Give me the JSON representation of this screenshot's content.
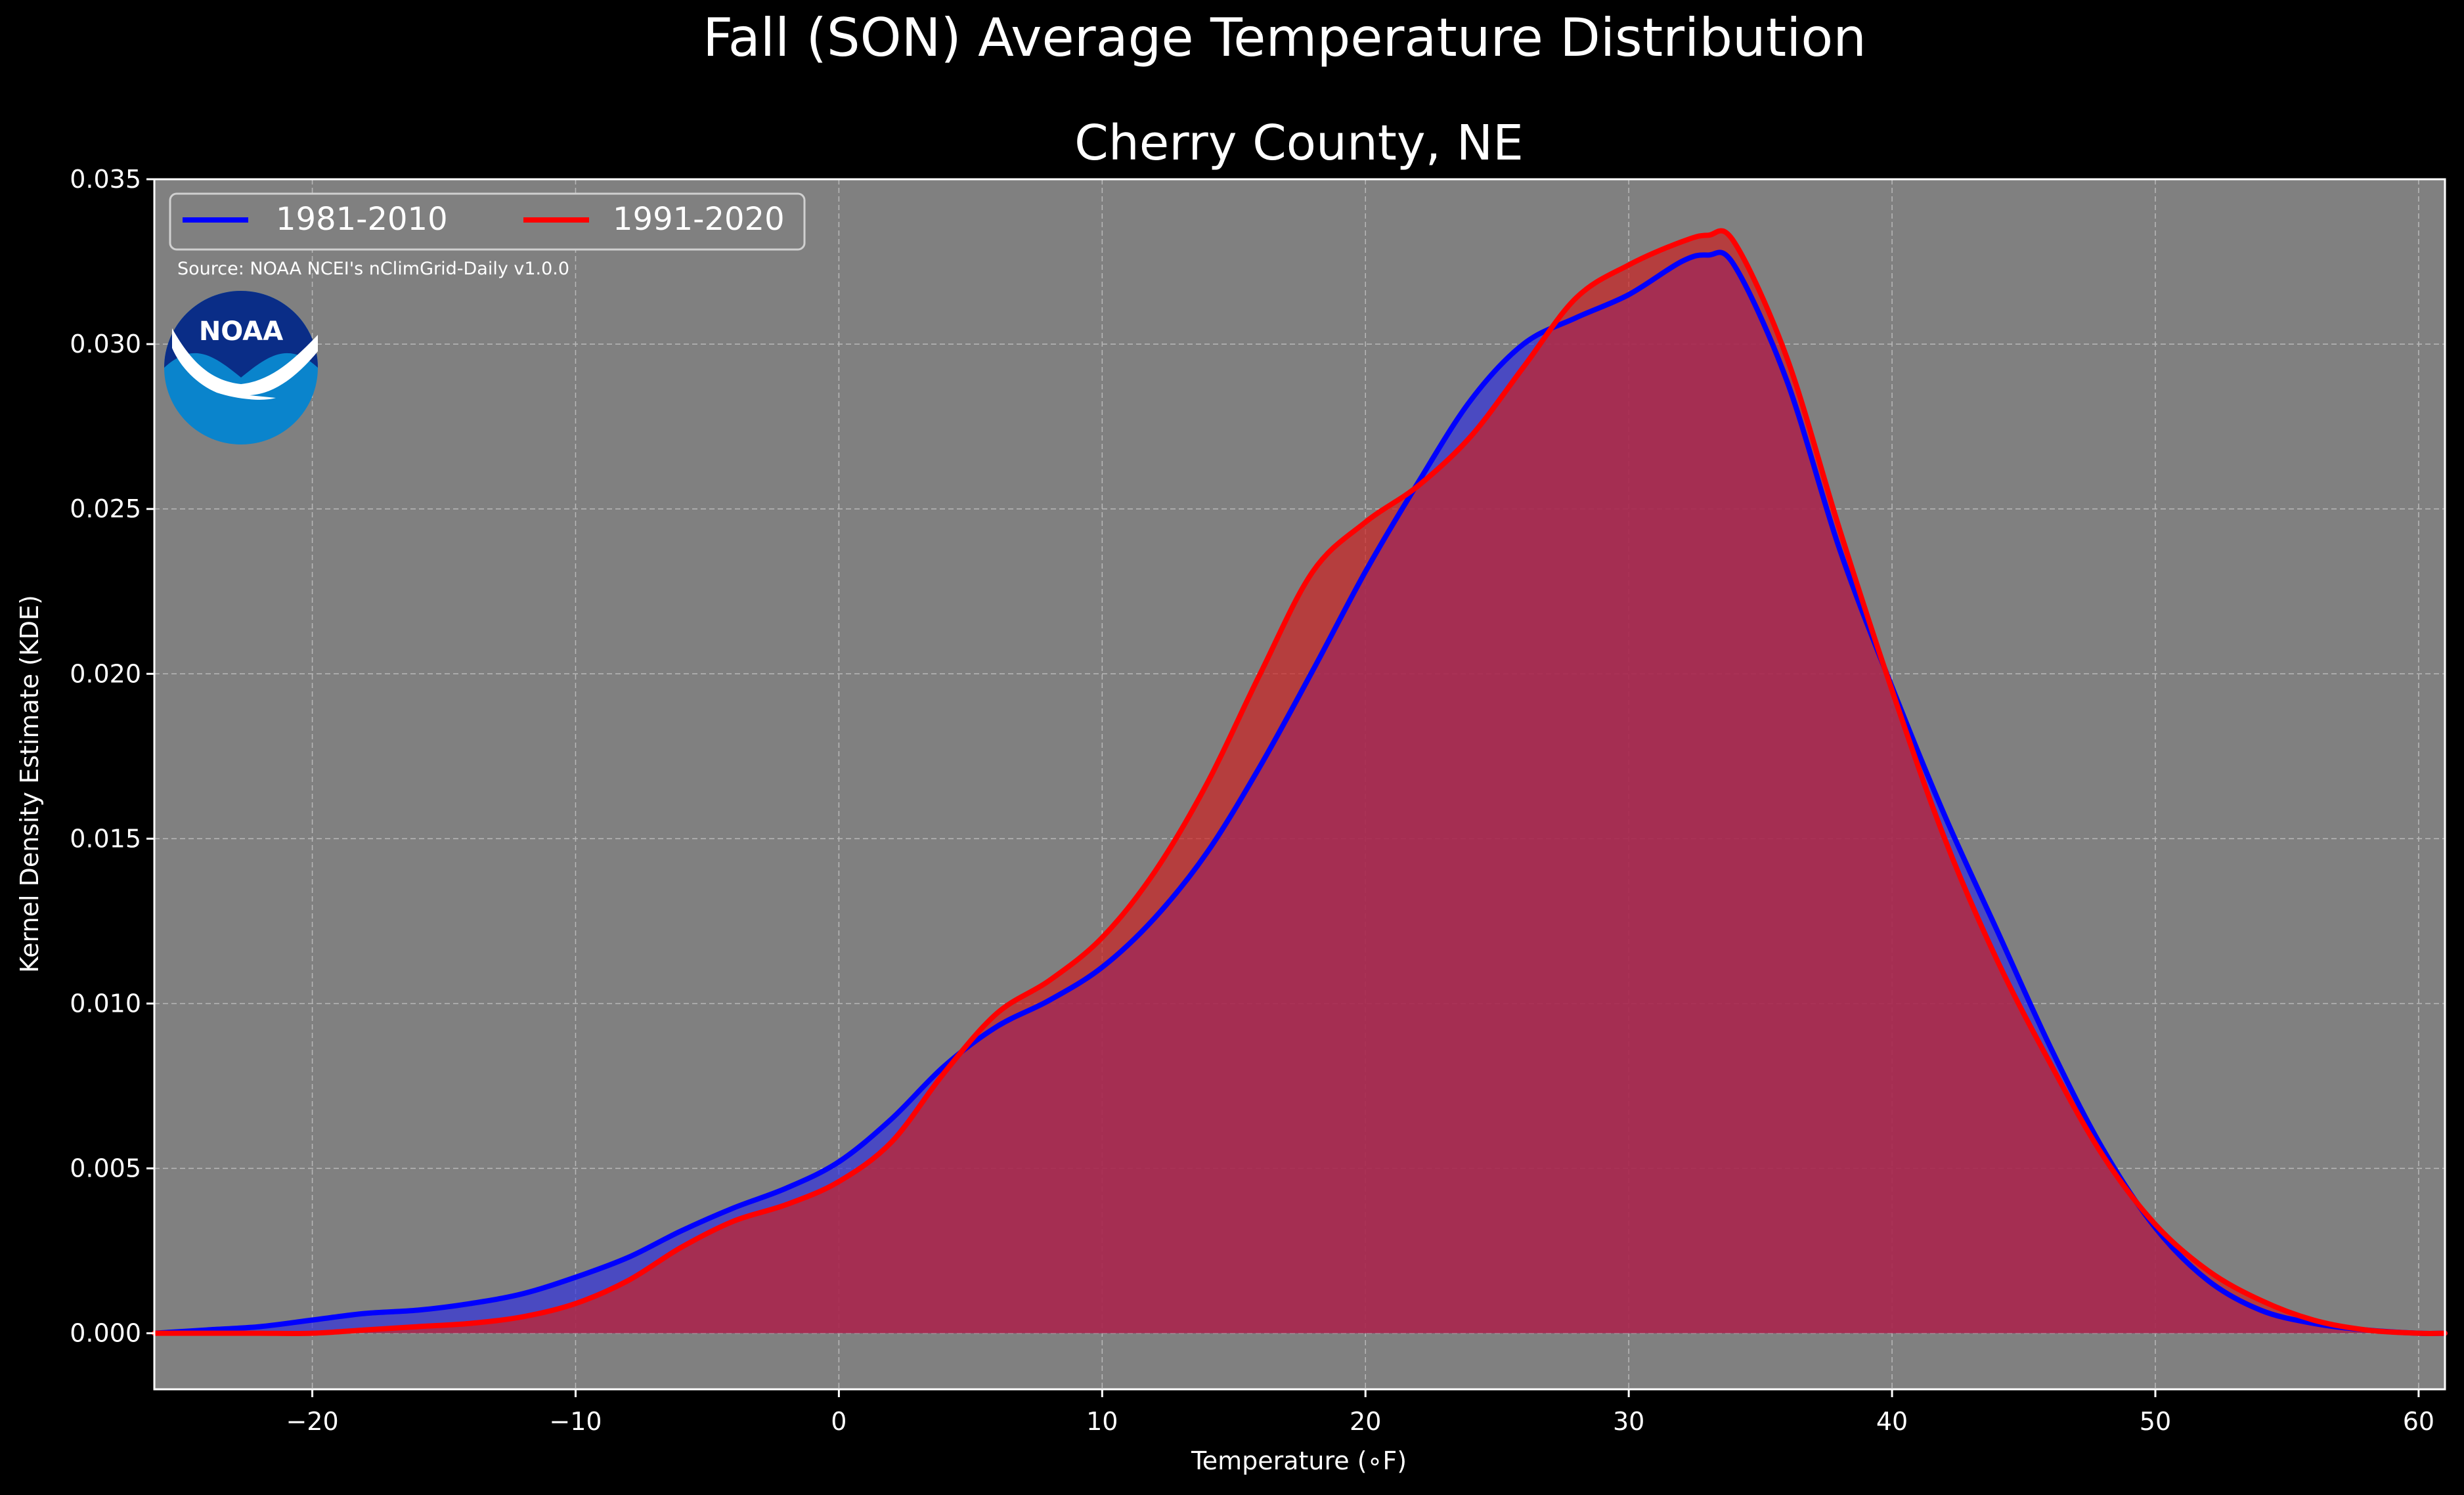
{
  "figure": {
    "suptitle": "Fall (SON) Average Temperature Distribution",
    "source_note": "Source: NOAA NCEI's nClimGrid-Daily v1.0.0",
    "logo_text": "NOAA",
    "colors": {
      "figure_background": "#000000",
      "plot_background": "#808080",
      "text": "#ffffff",
      "logo_dark": "#0a2d87",
      "logo_light": "#0a84cc"
    }
  },
  "chart_data": {
    "type": "area",
    "title": "Cherry County, NE",
    "xlabel": "Temperature (∘F)",
    "ylabel": "Kernel Density Estimate (KDE)",
    "xlim": [
      -26,
      61
    ],
    "ylim": [
      -0.0017,
      0.035
    ],
    "xticks": [
      -20,
      -10,
      0,
      10,
      20,
      30,
      40,
      50,
      60
    ],
    "xtick_labels": [
      "−20",
      "−10",
      "0",
      "10",
      "20",
      "30",
      "40",
      "50",
      "60"
    ],
    "yticks": [
      0.0,
      0.005,
      0.01,
      0.015,
      0.02,
      0.025,
      0.03,
      0.035
    ],
    "ytick_labels": [
      "0.000",
      "0.005",
      "0.010",
      "0.015",
      "0.020",
      "0.025",
      "0.030",
      "0.035"
    ],
    "grid": true,
    "legend_position": "top-left",
    "x": [
      -26,
      -24,
      -22,
      -20,
      -18,
      -16,
      -14,
      -12,
      -10,
      -8,
      -6,
      -4,
      -2,
      0,
      2,
      4,
      6,
      8,
      10,
      12,
      14,
      16,
      18,
      20,
      22,
      24,
      26,
      28,
      30,
      32,
      33,
      34,
      36,
      38,
      40,
      42,
      44,
      46,
      48,
      50,
      52,
      54,
      56,
      58,
      60,
      61
    ],
    "series": [
      {
        "name": "1981-2010",
        "color": "#0000ff",
        "fill": "#3333dd",
        "values": [
          0.0,
          0.0001,
          0.0002,
          0.0004,
          0.0006,
          0.0007,
          0.0009,
          0.0012,
          0.0017,
          0.0023,
          0.0031,
          0.0038,
          0.0044,
          0.0052,
          0.0065,
          0.0081,
          0.0093,
          0.0101,
          0.0111,
          0.0126,
          0.0146,
          0.0172,
          0.0201,
          0.0231,
          0.0258,
          0.0283,
          0.03,
          0.0308,
          0.0315,
          0.0325,
          0.0327,
          0.0324,
          0.0289,
          0.0238,
          0.0196,
          0.0157,
          0.0122,
          0.0087,
          0.0056,
          0.0032,
          0.0016,
          0.0007,
          0.0003,
          0.0001,
          0.0,
          0.0
        ]
      },
      {
        "name": "1991-2020",
        "color": "#ff0000",
        "fill": "#cc2222",
        "values": [
          0.0,
          0.0,
          0.0,
          0.0,
          0.0001,
          0.0002,
          0.0003,
          0.0005,
          0.0009,
          0.0016,
          0.0026,
          0.0034,
          0.0039,
          0.0046,
          0.0058,
          0.0079,
          0.0097,
          0.0107,
          0.012,
          0.014,
          0.0167,
          0.02,
          0.0231,
          0.0246,
          0.0257,
          0.0272,
          0.0293,
          0.0314,
          0.0324,
          0.0331,
          0.0333,
          0.0331,
          0.0296,
          0.0244,
          0.0195,
          0.015,
          0.0113,
          0.0082,
          0.0054,
          0.0033,
          0.0019,
          0.001,
          0.0004,
          0.0001,
          0.0,
          0.0
        ]
      }
    ]
  }
}
